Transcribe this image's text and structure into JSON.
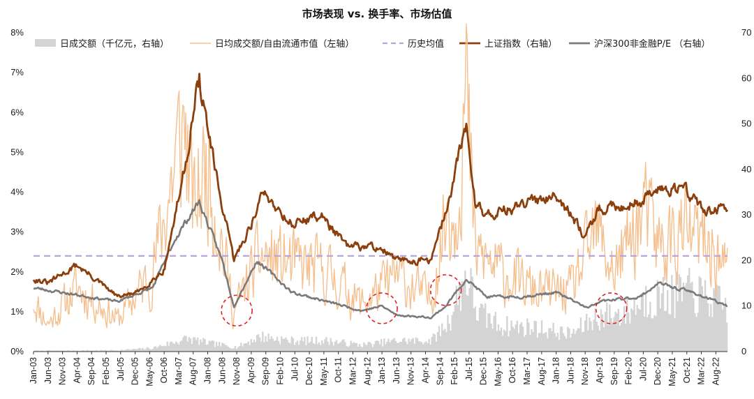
{
  "chart_data": {
    "type": "line",
    "title": "市场表现 vs. 换手率、市场估值",
    "colors": {
      "volume_bars": "#d4d4d4",
      "turnover": "#f5c08f",
      "hist_avg": "#b9a6d6",
      "index": "#8b3f0d",
      "pe": "#7a7a7a",
      "circles": "#e02020"
    },
    "left_axis": {
      "ticks": [
        "0%",
        "1%",
        "2%",
        "3%",
        "4%",
        "5%",
        "6%",
        "7%",
        "8%"
      ],
      "range": [
        0,
        8
      ]
    },
    "right_axis": {
      "ticks": [
        "0",
        "10",
        "20",
        "30",
        "40",
        "50",
        "60",
        "70"
      ],
      "range": [
        0,
        70
      ]
    },
    "x_axis": {
      "start": "2003-01",
      "end": "2022-12",
      "tick_labels": [
        "Jan-03",
        "Jun-03",
        "Nov-03",
        "Apr-04",
        "Sep-04",
        "Feb-05",
        "Jul-05",
        "Dec-05",
        "May-06",
        "Oct-06",
        "Mar-07",
        "Aug-07",
        "Jan-08",
        "Jun-08",
        "Nov-08",
        "Apr-09",
        "Sep-09",
        "Feb-10",
        "Jul-10",
        "Dec-10",
        "May-11",
        "Oct-11",
        "Mar-12",
        "Aug-12",
        "Jan-13",
        "Jun-13",
        "Nov-13",
        "Apr-14",
        "Sep-14",
        "Feb-15",
        "Jul-15",
        "Dec-15",
        "May-16",
        "Oct-16",
        "Mar-17",
        "Aug-17",
        "Jan-18",
        "Jun-18",
        "Nov-18",
        "Apr-19",
        "Sep-19",
        "Feb-20",
        "Jul-20",
        "Dec-20",
        "May-21",
        "Oct-21",
        "Mar-22",
        "Aug-22"
      ]
    },
    "legend": {
      "placement": "top",
      "items": [
        {
          "key": "volume",
          "label": "日成交额（千亿元，右轴）",
          "style": "bar"
        },
        {
          "key": "turnover",
          "label": "日均成交额/自由流通市值（左轴）",
          "style": "line"
        },
        {
          "key": "hist_avg",
          "label": "历史均值",
          "style": "dashed"
        },
        {
          "key": "index",
          "label": "上证指数（右轴）",
          "style": "thick-line"
        },
        {
          "key": "pe",
          "label": "沪深300非金融P/E （右轴）",
          "style": "thick-line"
        }
      ]
    },
    "hist_avg_value": 2.4,
    "series": [
      {
        "key": "index",
        "axis": "right",
        "x": [
          "2003-01",
          "2003-06",
          "2004-04",
          "2005-06",
          "2006-01",
          "2006-10",
          "2007-05",
          "2007-10",
          "2008-04",
          "2008-10",
          "2009-04",
          "2009-08",
          "2010-06",
          "2011-04",
          "2012-01",
          "2012-12",
          "2013-06",
          "2014-06",
          "2014-12",
          "2015-06",
          "2015-09",
          "2016-01",
          "2017-01",
          "2018-01",
          "2018-10",
          "2019-04",
          "2020-06",
          "2021-01",
          "2021-09",
          "2022-04",
          "2022-12"
        ],
        "values": [
          16,
          15,
          19,
          12,
          13,
          18,
          40,
          60,
          38,
          20,
          28,
          35,
          28,
          30,
          23,
          23,
          20,
          20,
          33,
          50,
          33,
          30,
          32,
          35,
          26,
          31,
          33,
          36,
          36,
          31,
          31
        ]
      },
      {
        "key": "pe",
        "axis": "right",
        "x": [
          "2003-01",
          "2005-06",
          "2006-06",
          "2007-02",
          "2007-10",
          "2008-06",
          "2008-10",
          "2009-06",
          "2010-06",
          "2011-06",
          "2012-06",
          "2013-01",
          "2013-06",
          "2014-06",
          "2014-11",
          "2015-06",
          "2016-01",
          "2017-01",
          "2018-01",
          "2018-12",
          "2019-04",
          "2020-06",
          "2020-12",
          "2021-12",
          "2022-12"
        ],
        "values": [
          14,
          11,
          14,
          25,
          33,
          20,
          10,
          20,
          13,
          11,
          9,
          10,
          8,
          7.5,
          10,
          16,
          12,
          12,
          13,
          9.5,
          11,
          12,
          15,
          13,
          10
        ]
      },
      {
        "key": "turnover",
        "axis": "left",
        "x": [
          "2003-01",
          "2003-06",
          "2004-04",
          "2005-06",
          "2006-06",
          "2007-05",
          "2007-08",
          "2008-01",
          "2008-10",
          "2009-07",
          "2010-06",
          "2011-06",
          "2012-06",
          "2013-06",
          "2014-06",
          "2014-12",
          "2015-02",
          "2015-06",
          "2015-09",
          "2016-06",
          "2017-06",
          "2018-06",
          "2019-03",
          "2019-09",
          "2020-07",
          "2021-01",
          "2021-09",
          "2022-06",
          "2022-12"
        ],
        "values": [
          1.3,
          0.7,
          1.6,
          0.8,
          2.0,
          5.8,
          3.5,
          4.8,
          1.0,
          2.4,
          2.2,
          2.0,
          1.2,
          1.9,
          1.3,
          3.8,
          3.2,
          6.5,
          2.5,
          2.0,
          1.5,
          1.5,
          3.0,
          2.0,
          3.5,
          2.6,
          3.0,
          2.6,
          2.0
        ]
      },
      {
        "key": "volume",
        "axis": "right",
        "x": [
          "2003-01",
          "2005-06",
          "2006-06",
          "2007-06",
          "2008-01",
          "2008-11",
          "2009-07",
          "2010-06",
          "2011-06",
          "2012-06",
          "2013-06",
          "2014-06",
          "2014-12",
          "2015-06",
          "2015-10",
          "2016-06",
          "2017-06",
          "2018-06",
          "2019-03",
          "2020-01",
          "2020-07",
          "2021-06",
          "2021-09",
          "2022-06",
          "2022-12"
        ],
        "values": [
          0.2,
          0.3,
          0.8,
          3.0,
          2.0,
          1.0,
          3.5,
          2.5,
          2.5,
          1.5,
          2.5,
          2.5,
          7,
          18,
          9,
          6,
          5.5,
          4,
          8,
          9,
          12,
          13,
          14,
          12,
          10
        ]
      }
    ],
    "annotations": [
      {
        "type": "circle",
        "x": "2008-11",
        "y_right": 9
      },
      {
        "type": "circle",
        "x": "2013-01",
        "y_right": 9.5
      },
      {
        "type": "circle",
        "x": "2014-11",
        "y_right": 13.5
      },
      {
        "type": "circle",
        "x": "2019-08",
        "y_right": 9.5
      }
    ]
  }
}
